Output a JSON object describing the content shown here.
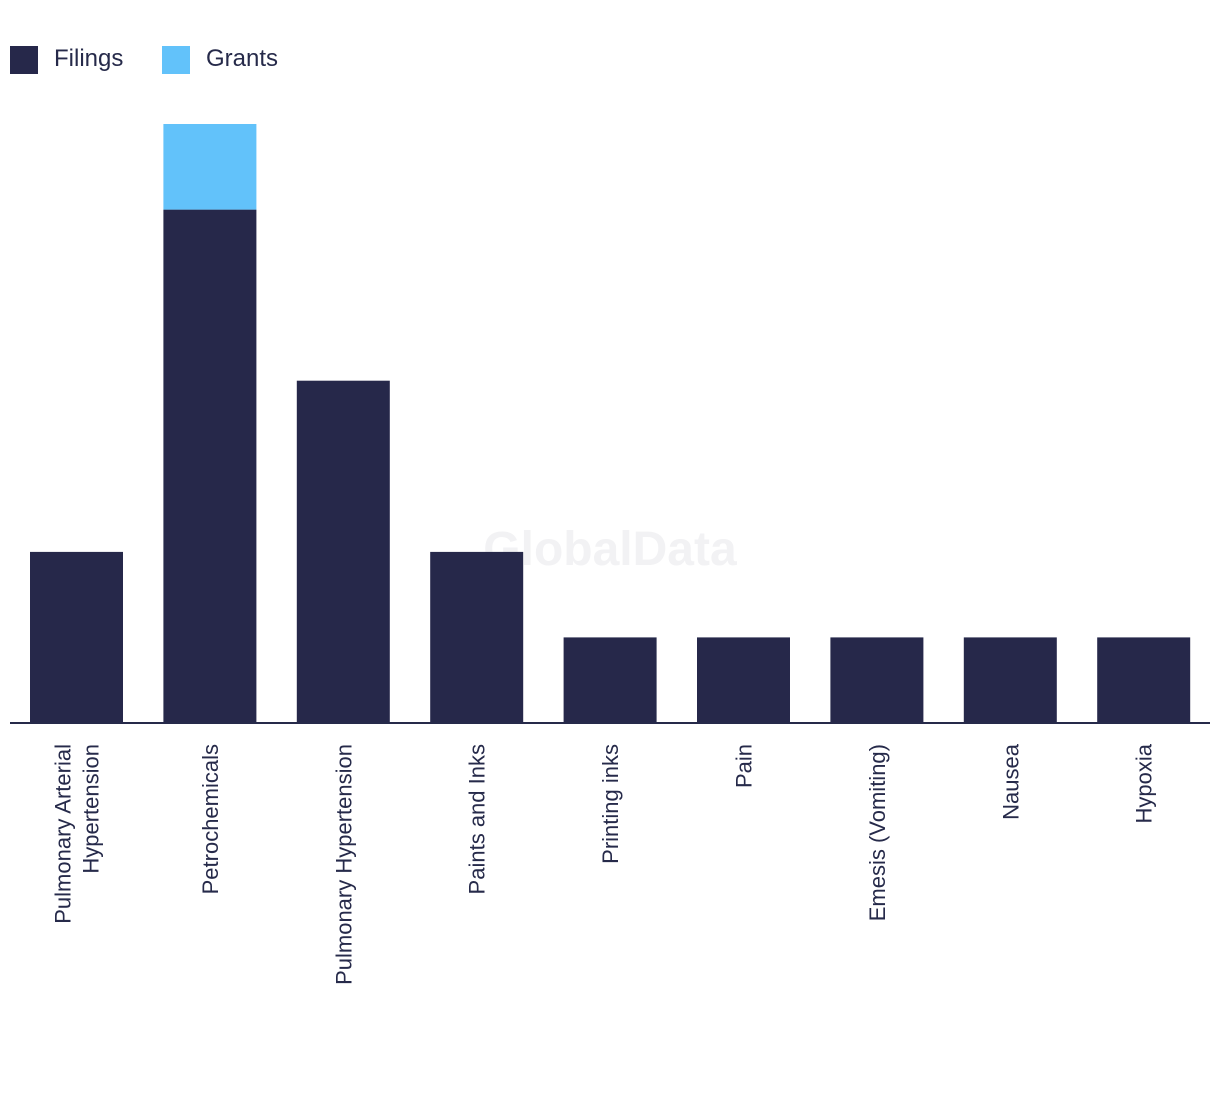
{
  "chart_data": {
    "type": "bar",
    "stacked": true,
    "title": "",
    "xlabel": "",
    "ylabel": "",
    "ylim": [
      0,
      7
    ],
    "legend_position": "top-left",
    "watermark": "GlobalData",
    "categories": [
      [
        "Pulmonary Arterial",
        "Hypertension"
      ],
      [
        "Petrochemicals"
      ],
      [
        "Pulmonary Hypertension"
      ],
      [
        "Paints and Inks"
      ],
      [
        "Printing inks"
      ],
      [
        "Pain"
      ],
      [
        "Emesis (Vomiting)"
      ],
      [
        "Nausea"
      ],
      [
        "Hypoxia"
      ]
    ],
    "series": [
      {
        "name": "Filings",
        "color": "#26284a",
        "values": [
          2,
          6,
          4,
          2,
          1,
          1,
          1,
          1,
          1
        ]
      },
      {
        "name": "Grants",
        "color": "#62c2fa",
        "values": [
          0,
          1,
          0,
          0,
          0,
          0,
          0,
          0,
          0
        ]
      }
    ]
  }
}
